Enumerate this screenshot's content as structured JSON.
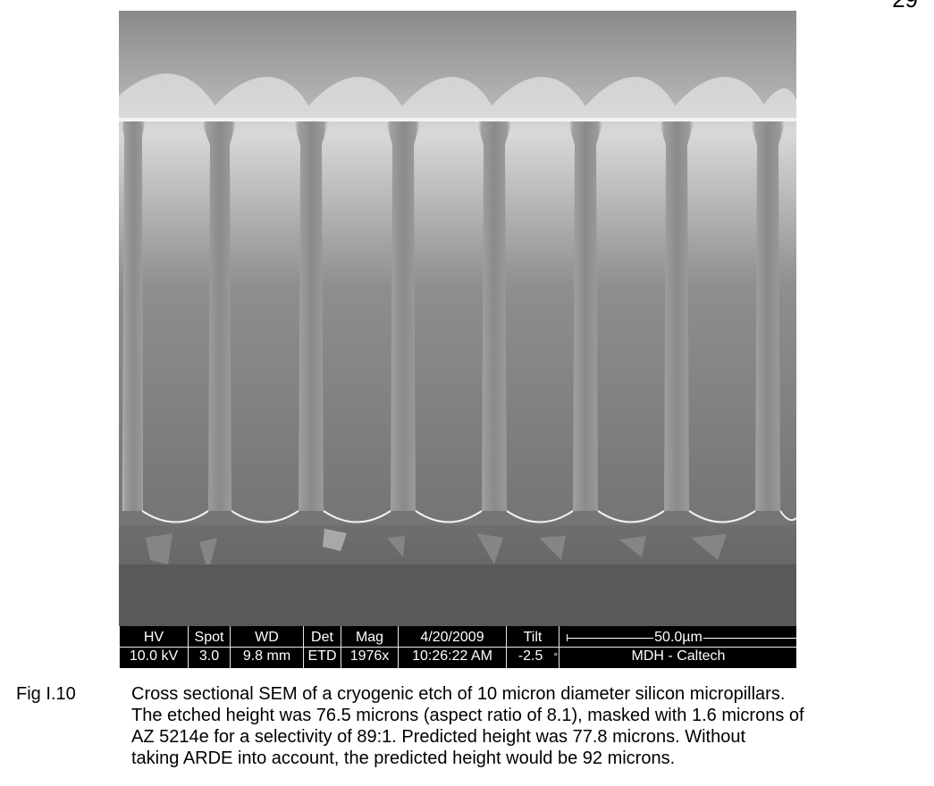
{
  "page_number": "29",
  "figure": {
    "label": "Fig I.10",
    "caption_lines": [
      "Cross sectional SEM of a cryogenic etch of 10 micron diameter silicon micropillars.",
      "The etched height was 76.5 microns (aspect ratio of 8.1), masked with 1.6 microns of",
      "AZ 5214e for a selectivity of 89:1.  Predicted height was 77.8 microns.  Without",
      "taking ARDE into account, the predicted height would be 92 microns."
    ]
  },
  "sem_databar": {
    "columns": [
      {
        "header": "HV",
        "value": "10.0 kV"
      },
      {
        "header": "Spot",
        "value": "3.0"
      },
      {
        "header": "WD",
        "value": "9.8 mm"
      },
      {
        "header": "Det",
        "value": "ETD"
      },
      {
        "header": "Mag",
        "value": "1976x"
      },
      {
        "header": "4/20/2009",
        "value": "10:26:22 AM"
      },
      {
        "header": "Tilt",
        "value": "-2.5"
      }
    ],
    "tilt_unit": "°",
    "scale_label": "50.0µm",
    "credit": "MDH - Caltech"
  }
}
